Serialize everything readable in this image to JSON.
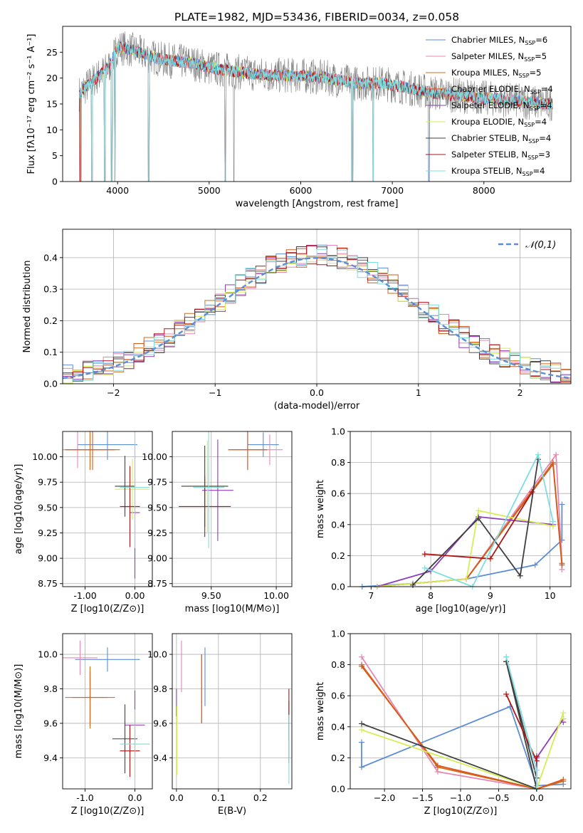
{
  "figure": {
    "title": "PLATE=1982, MJD=53436, FIBERID=0034, z=0.058"
  },
  "colors": {
    "Chabrier MILES": "#5b8ed6",
    "Salpeter MILES": "#e687b4",
    "Kroupa MILES": "#d2691e",
    "Chabrier ELODIE": "#d85a1a",
    "Salpeter ELODIE": "#8e3bb7",
    "Kroupa ELODIE": "#d4ee54",
    "Chabrier STELIB": "#3f3f3f",
    "Salpeter STELIB": "#b01515",
    "Kroupa STELIB": "#7fdede",
    "data_spectrum": "#808080",
    "normal_curve": "#5b8ed6",
    "grid": "#b0b0b0"
  },
  "legend_spectrum": [
    "Chabrier MILES, N_SSP=6",
    "Salpeter MILES, N_SSP=5",
    "Kroupa MILES, N_SSP=5",
    "Chabrier ELODIE, N_SSP=4",
    "Salpeter ELODIE, N_SSP=4",
    "Kroupa ELODIE, N_SSP=4",
    "Chabrier STELIB, N_SSP=4",
    "Salpeter STELIB, N_SSP=3",
    "Kroupa STELIB, N_SSP=4"
  ],
  "legend_hist": "𝒩(0,1)",
  "chart_data": [
    {
      "id": "spectrum",
      "type": "line",
      "xlabel": "wavelength [Angstrom, rest frame]",
      "ylabel": "Flux [f_λ 10^-17 erg cm^-2 s^-1 A^-1]",
      "xlim": [
        3400,
        8950
      ],
      "ylim": [
        0,
        30
      ],
      "xticks": [
        4000,
        5000,
        6000,
        7000,
        8000
      ],
      "yticks": [
        0,
        5,
        10,
        15,
        20,
        25
      ],
      "grid": false,
      "legend_position": "top-right",
      "x": [
        3580,
        3700,
        3900,
        4000,
        4150,
        4300,
        4500,
        4800,
        5000,
        5200,
        5400,
        5700,
        6000,
        6300,
        6600,
        6900,
        7200,
        7500,
        7800,
        8100,
        8400,
        8700
      ],
      "y_model": [
        17,
        19,
        22,
        26,
        25.5,
        24.5,
        23.5,
        23,
        22,
        21.5,
        21,
        20.5,
        20.5,
        20,
        19,
        19,
        18,
        17,
        16.5,
        16,
        15.5,
        15
      ],
      "absorption_lines_model": [
        3590,
        3720,
        3860,
        3935,
        3970,
        4340,
        5175,
        6565,
        6790,
        7400,
        8540
      ],
      "absorption_lines_data": [
        3600,
        3935,
        3970,
        5270,
        6560,
        7400
      ]
    },
    {
      "id": "residuals",
      "type": "bar",
      "xlabel": "(data-model)/error",
      "ylabel": "Normed distribution",
      "xlim": [
        -2.5,
        2.5
      ],
      "ylim": [
        0,
        0.49
      ],
      "xticks": [
        -2,
        -1,
        0,
        1,
        2
      ],
      "yticks": [
        0.0,
        0.1,
        0.2,
        0.3,
        0.4
      ],
      "grid": true,
      "legend_position": "top-right",
      "bins": [
        -2.5,
        2.5,
        50
      ],
      "base_distribution": "normal"
    },
    {
      "id": "age_vs_Z",
      "type": "scatter",
      "xlabel": "Z [log10(Z/Z⊙)]",
      "ylabel": "age [log10(age/yr)]",
      "xlim": [
        -1.45,
        0.35
      ],
      "ylim": [
        8.72,
        10.25
      ],
      "xticks": [
        -1,
        0
      ],
      "yticks": [
        8.75,
        9.0,
        9.25,
        9.5,
        9.75,
        10.0
      ],
      "grid": true,
      "points": [
        {
          "s": "Chabrier MILES",
          "x": -0.55,
          "xerr": 0.6,
          "y": 10.12,
          "yerr": 0.15
        },
        {
          "s": "Salpeter MILES",
          "x": -1.15,
          "xerr": 0.4,
          "y": 10.07,
          "yerr": 0.18
        },
        {
          "s": "Kroupa MILES",
          "x": -0.9,
          "xerr": 0.5,
          "y": 10.07,
          "yerr": 0.2
        },
        {
          "s": "Chabrier ELODIE",
          "x": -0.85,
          "xerr": 0.55,
          "y": 10.07,
          "yerr": 0.2
        },
        {
          "s": "Salpeter ELODIE",
          "x": 0.0,
          "xerr": 0.1,
          "y": 9.45,
          "yerr": 0.65
        },
        {
          "s": "Kroupa ELODIE",
          "x": -0.05,
          "xerr": 0.35,
          "y": 9.68,
          "yerr": 0.3
        },
        {
          "s": "Chabrier STELIB",
          "x": -0.2,
          "xerr": 0.2,
          "y": 9.71,
          "yerr": 0.3
        },
        {
          "s": "Salpeter STELIB",
          "x": -0.1,
          "xerr": 0.2,
          "y": 9.51,
          "yerr": 0.4
        },
        {
          "s": "Kroupa STELIB",
          "x": 0.0,
          "xerr": 0.3,
          "y": 9.7,
          "yerr": 0.6
        }
      ]
    },
    {
      "id": "age_vs_mass",
      "type": "scatter",
      "xlabel": "mass [log10(M/M⊙)]",
      "ylabel": "",
      "xlim": [
        9.2,
        10.12
      ],
      "ylim": [
        8.72,
        10.25
      ],
      "xticks": [
        9.5,
        10.0
      ],
      "yticks": [
        8.75,
        9.0,
        9.25,
        9.5,
        9.75,
        10.0
      ],
      "grid": true,
      "points": [
        {
          "s": "Chabrier MILES",
          "x": 9.9,
          "xerr": 0.12,
          "y": 10.12,
          "yerr": 0.12
        },
        {
          "s": "Salpeter MILES",
          "x": 9.95,
          "xerr": 0.1,
          "y": 10.07,
          "yerr": 0.15
        },
        {
          "s": "Kroupa MILES",
          "x": 9.78,
          "xerr": 0.15,
          "y": 10.07,
          "yerr": 0.2
        },
        {
          "s": "Chabrier ELODIE",
          "x": 9.78,
          "xerr": 0.15,
          "y": 10.07,
          "yerr": 0.2
        },
        {
          "s": "Salpeter ELODIE",
          "x": 9.55,
          "xerr": 0.12,
          "y": 9.67,
          "yerr": 0.5
        },
        {
          "s": "Kroupa ELODIE",
          "x": 9.47,
          "xerr": 0.15,
          "y": 9.71,
          "yerr": 0.45
        },
        {
          "s": "Chabrier STELIB",
          "x": 9.45,
          "xerr": 0.18,
          "y": 9.71,
          "yerr": 0.4
        },
        {
          "s": "Salpeter STELIB",
          "x": 9.45,
          "xerr": 0.2,
          "y": 9.51,
          "yerr": 0.3
        },
        {
          "s": "Kroupa STELIB",
          "x": 9.48,
          "xerr": 0.12,
          "y": 9.7,
          "yerr": 0.6
        }
      ]
    },
    {
      "id": "weight_vs_age",
      "type": "line",
      "xlabel": "age [log10(age/yr)]",
      "ylabel": "mass weight",
      "xlim": [
        6.65,
        10.35
      ],
      "ylim": [
        0,
        1.0
      ],
      "xticks": [
        7,
        8,
        9,
        10
      ],
      "yticks": [
        0.0,
        0.2,
        0.4,
        0.6,
        0.8,
        1.0
      ],
      "grid": true,
      "series": [
        {
          "s": "Chabrier MILES",
          "x": [
            6.85,
            7.7,
            8.6,
            9.75,
            10.2,
            10.2
          ],
          "y": [
            0.0,
            0.02,
            0.05,
            0.14,
            0.3,
            0.53
          ]
        },
        {
          "s": "Salpeter MILES",
          "x": [
            7.1,
            8.6,
            10.1,
            10.2,
            10.2
          ],
          "y": [
            0.0,
            0.05,
            0.85,
            0.15,
            0.11
          ]
        },
        {
          "s": "Kroupa MILES",
          "x": [
            7.1,
            8.6,
            10.05,
            10.2
          ],
          "y": [
            0.0,
            0.05,
            0.8,
            0.15
          ]
        },
        {
          "s": "Chabrier ELODIE",
          "x": [
            7.1,
            8.6,
            10.05,
            10.2
          ],
          "y": [
            0.0,
            0.05,
            0.79,
            0.14
          ]
        },
        {
          "s": "Salpeter ELODIE",
          "x": [
            7.1,
            8.0,
            8.8,
            10.05
          ],
          "y": [
            0.0,
            0.1,
            0.45,
            0.4
          ]
        },
        {
          "s": "Kroupa ELODIE",
          "x": [
            7.1,
            8.6,
            8.8,
            10.05
          ],
          "y": [
            0.0,
            0.05,
            0.49,
            0.39
          ]
        },
        {
          "s": "Chabrier STELIB",
          "x": [
            7.7,
            8.8,
            9.5,
            9.8
          ],
          "y": [
            0.01,
            0.44,
            0.07,
            0.82
          ]
        },
        {
          "s": "Salpeter STELIB",
          "x": [
            7.9,
            9.0,
            9.7
          ],
          "y": [
            0.21,
            0.18,
            0.61
          ]
        },
        {
          "s": "Kroupa STELIB",
          "x": [
            7.9,
            8.7,
            9.8,
            10.05
          ],
          "y": [
            0.12,
            0.0,
            0.85,
            0.42
          ]
        }
      ]
    },
    {
      "id": "mass_vs_Z",
      "type": "scatter",
      "xlabel": "Z [log10(Z/Z⊙)]",
      "ylabel": "mass [log10(M/M⊙)]",
      "xlim": [
        -1.45,
        0.35
      ],
      "ylim": [
        9.22,
        10.12
      ],
      "xticks": [
        -1,
        0
      ],
      "yticks": [
        9.4,
        9.6,
        9.8,
        10.0
      ],
      "grid": true,
      "points": [
        {
          "s": "Chabrier MILES",
          "x": -0.55,
          "xerr": 0.65,
          "y": 9.97,
          "yerr": 0.07
        },
        {
          "s": "Salpeter MILES",
          "x": -1.1,
          "xerr": 0.35,
          "y": 9.98,
          "yerr": 0.1
        },
        {
          "s": "Kroupa MILES",
          "x": -0.9,
          "xerr": 0.35,
          "y": 9.75,
          "yerr": 0.18
        },
        {
          "s": "Chabrier ELODIE",
          "x": -0.9,
          "xerr": 0.5,
          "y": 9.75,
          "yerr": 0.15
        },
        {
          "s": "Salpeter ELODIE",
          "x": 0.0,
          "xerr": 0.2,
          "y": 9.59,
          "yerr": 0.2
        },
        {
          "s": "Kroupa ELODIE",
          "x": 0.0,
          "xerr": 0.3,
          "y": 9.48,
          "yerr": 0.2
        },
        {
          "s": "Chabrier STELIB",
          "x": -0.2,
          "xerr": 0.25,
          "y": 9.51,
          "yerr": 0.2
        },
        {
          "s": "Salpeter STELIB",
          "x": -0.1,
          "xerr": 0.2,
          "y": 9.44,
          "yerr": 0.15
        },
        {
          "s": "Kroupa STELIB",
          "x": 0.0,
          "xerr": 0.3,
          "y": 9.48,
          "yerr": 0.2
        }
      ]
    },
    {
      "id": "mass_vs_ebv",
      "type": "scatter",
      "xlabel": "E(B-V)",
      "ylabel": "",
      "xlim": [
        -0.01,
        0.275
      ],
      "ylim": [
        9.22,
        10.12
      ],
      "xticks": [
        0.0,
        0.1,
        0.2
      ],
      "yticks": [
        9.4,
        9.6,
        9.8,
        10.0
      ],
      "grid": true,
      "points": [
        {
          "s": "Chabrier MILES",
          "x": 0.068,
          "xerr": 0,
          "y": 9.87,
          "yerr": 0.17
        },
        {
          "s": "Salpeter MILES",
          "x": 0.012,
          "xerr": 0,
          "y": 9.93,
          "yerr": 0.15
        },
        {
          "s": "Kroupa MILES",
          "x": 0.06,
          "xerr": 0,
          "y": 9.8,
          "yerr": 0.2
        },
        {
          "s": "Chabrier ELODIE",
          "x": 0.06,
          "xerr": 0,
          "y": 9.8,
          "yerr": 0.2
        },
        {
          "s": "Salpeter ELODIE",
          "x": 0.0,
          "xerr": 0,
          "y": 9.72,
          "yerr": 0.08
        },
        {
          "s": "Kroupa ELODIE",
          "x": 0.001,
          "xerr": 0,
          "y": 9.5,
          "yerr": 0.2
        },
        {
          "s": "Chabrier STELIB",
          "x": 0.268,
          "xerr": 0,
          "y": 9.55,
          "yerr": 0.18
        },
        {
          "s": "Salpeter STELIB",
          "x": 0.268,
          "xerr": 0,
          "y": 9.65,
          "yerr": 0.15
        },
        {
          "s": "Kroupa STELIB",
          "x": 0.268,
          "xerr": 0,
          "y": 9.45,
          "yerr": 0.2
        }
      ]
    },
    {
      "id": "weight_vs_Z",
      "type": "line",
      "xlabel": "Z [log10(Z/Z⊙)]",
      "ylabel": "mass weight",
      "xlim": [
        -2.45,
        0.45
      ],
      "ylim": [
        0,
        1.0
      ],
      "xticks": [
        -2.0,
        -1.5,
        -1.0,
        -0.5,
        0.0
      ],
      "yticks": [
        0.0,
        0.2,
        0.4,
        0.6,
        0.8,
        1.0
      ],
      "grid": true,
      "series": [
        {
          "s": "Chabrier MILES",
          "x": [
            -2.3,
            -2.3,
            -0.35,
            0.0,
            0.35
          ],
          "y": [
            0.3,
            0.14,
            0.53,
            0.02,
            0.03
          ]
        },
        {
          "s": "Salpeter MILES",
          "x": [
            -2.3,
            -1.3,
            0.0,
            0.35
          ],
          "y": [
            0.85,
            0.11,
            0.0,
            0.05
          ]
        },
        {
          "s": "Kroupa MILES",
          "x": [
            -2.3,
            -1.3,
            0.0,
            0.35
          ],
          "y": [
            0.8,
            0.14,
            0.0,
            0.05
          ]
        },
        {
          "s": "Chabrier ELODIE",
          "x": [
            -2.3,
            -1.3,
            0.0,
            0.35
          ],
          "y": [
            0.79,
            0.15,
            0.0,
            0.06
          ]
        },
        {
          "s": "Salpeter ELODIE",
          "x": [
            0.0,
            0.0,
            0.35,
            0.35
          ],
          "y": [
            0.0,
            0.2,
            0.45,
            0.43
          ]
        },
        {
          "s": "Kroupa ELODIE",
          "x": [
            -2.3,
            0.0,
            0.35,
            0.35
          ],
          "y": [
            0.38,
            0.0,
            0.49,
            0.45
          ]
        },
        {
          "s": "Chabrier STELIB",
          "x": [
            -2.3,
            0.0,
            -0.4,
            -0.4,
            0.0
          ],
          "y": [
            0.42,
            0.0,
            0.82,
            0.82,
            0.07
          ]
        },
        {
          "s": "Salpeter STELIB",
          "x": [
            -0.4,
            0.0,
            0.0
          ],
          "y": [
            0.61,
            0.18,
            0.21
          ]
        },
        {
          "s": "Kroupa STELIB",
          "x": [
            -0.4,
            -0.4,
            0.0,
            0.0
          ],
          "y": [
            0.85,
            0.85,
            0.12,
            0.0
          ]
        }
      ]
    }
  ]
}
